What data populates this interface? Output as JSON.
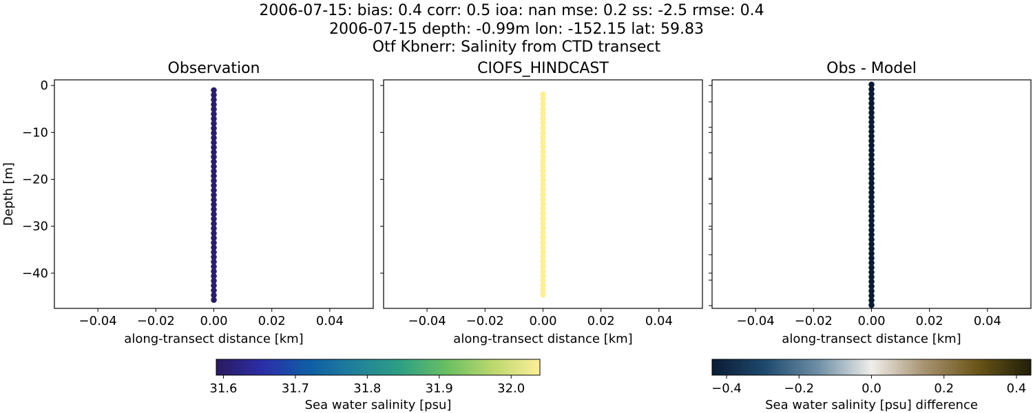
{
  "chart_data": {
    "type": "scatter",
    "title_lines": [
      "2006-07-15: bias: 0.4  corr: 0.5  ioa: nan  mse: 0.2  ss: -2.5  rmse: 0.4",
      "2006-07-15 depth: -0.99m lon: -152.15 lat: 59.83",
      "Otf Kbnerr: Salinity from CTD transect"
    ],
    "ylabel": "Depth [m]",
    "ylim": [
      -47.5,
      1.2
    ],
    "yticks": [
      0,
      -10,
      -20,
      -30,
      -40
    ],
    "ytick_labels": [
      "0",
      "−10",
      "−20",
      "−30",
      "−40"
    ],
    "xlim": [
      -0.055,
      0.055
    ],
    "xticks": [
      -0.04,
      -0.02,
      0.0,
      0.02,
      0.04
    ],
    "xtick_labels": [
      "−0.04",
      "−0.02",
      "0.00",
      "0.02",
      "0.04"
    ],
    "panels": [
      {
        "title": "Observation",
        "xlabel": "along-transect distance [km]",
        "x": 0.0,
        "depth_start": -1.0,
        "depth_end": -45.7,
        "n_points": 45,
        "value_profile": [
          31.6,
          31.6
        ],
        "colormap": "haline"
      },
      {
        "title": "CIOFS_HINDCAST",
        "xlabel": "along-transect distance [km]",
        "x": 0.0,
        "depth_start": -1.9,
        "depth_end": -44.6,
        "n_points": 43,
        "value_profile": [
          32.04,
          32.04
        ],
        "colormap": "haline"
      },
      {
        "title": "Obs - Model",
        "xlabel": "along-transect distance [km]",
        "x": 0.0,
        "depth_start": 0.2,
        "depth_end": -46.8,
        "n_points": 48,
        "value_profile": [
          -0.44,
          -0.44
        ],
        "colormap": "diff"
      }
    ],
    "colorbars": [
      {
        "label": "Sea water salinity [psu]",
        "range": [
          31.59,
          32.04
        ],
        "ticks": [
          31.6,
          31.7,
          31.8,
          31.9,
          32.0
        ],
        "tick_labels": [
          "31.6",
          "31.7",
          "31.8",
          "31.9",
          "32.0"
        ],
        "colors": [
          "#2a1a5e",
          "#2b2ea8",
          "#0f5da6",
          "#20809a",
          "#2fa083",
          "#6bbf62",
          "#bcd86e",
          "#fdee99"
        ]
      },
      {
        "label": "Sea water salinity [psu] difference",
        "range": [
          -0.44,
          0.44
        ],
        "ticks": [
          -0.4,
          -0.2,
          0.0,
          0.2,
          0.4
        ],
        "tick_labels": [
          "−0.4",
          "−0.2",
          "0.0",
          "0.2",
          "0.4"
        ],
        "colors": [
          "#0b1b33",
          "#1e4a6e",
          "#6f8fa6",
          "#f0eeea",
          "#a69270",
          "#6a5417",
          "#1f1f0a"
        ]
      }
    ]
  }
}
